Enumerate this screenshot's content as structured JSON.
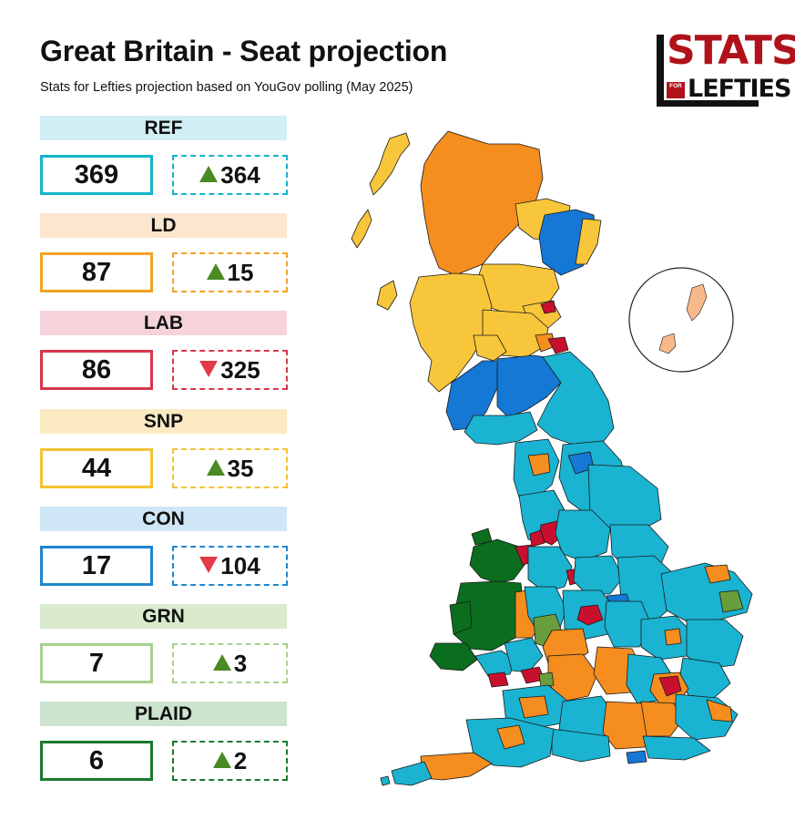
{
  "header": {
    "title": "Great Britain - Seat projection",
    "subtitle": "Stats for Lefties projection based on YouGov polling (May 2025)"
  },
  "logo": {
    "line1": "STATS",
    "line2_small": "FOR",
    "line2": "LEFTIES"
  },
  "parties": [
    {
      "id": "ref",
      "name": "REF",
      "seats": "369",
      "change": "364",
      "direction": "up",
      "color": "#12b5cb",
      "header_bg": "#d2eef5"
    },
    {
      "id": "ld",
      "name": "LD",
      "seats": "87",
      "change": "15",
      "direction": "up",
      "color": "#f2a226",
      "header_bg": "#fce6cd"
    },
    {
      "id": "lab",
      "name": "LAB",
      "seats": "86",
      "change": "325",
      "direction": "down",
      "color": "#d9364b",
      "header_bg": "#f6d3da"
    },
    {
      "id": "snp",
      "name": "SNP",
      "seats": "44",
      "change": "35",
      "direction": "up",
      "color": "#f5c232",
      "header_bg": "#fbeac1"
    },
    {
      "id": "con",
      "name": "CON",
      "seats": "17",
      "change": "104",
      "direction": "down",
      "color": "#1e86cf",
      "header_bg": "#cfe6f6"
    },
    {
      "id": "grn",
      "name": "GRN",
      "seats": "7",
      "change": "3",
      "direction": "up",
      "color": "#a8d08d",
      "header_bg": "#d9ebcc"
    },
    {
      "id": "plaid",
      "name": "PLAID",
      "seats": "6",
      "change": "2",
      "direction": "up",
      "color": "#1c7a2e",
      "header_bg": "#cde4cf"
    }
  ],
  "map": {
    "colors": {
      "ref": "#1ab3d1",
      "ld": "#f58d1f",
      "lab": "#c8102e",
      "snp": "#f7c63a",
      "con": "#1478d4",
      "grn": "#6a9e3c",
      "plaid": "#0a6e1e",
      "ld_light": "#f7b98a"
    }
  }
}
